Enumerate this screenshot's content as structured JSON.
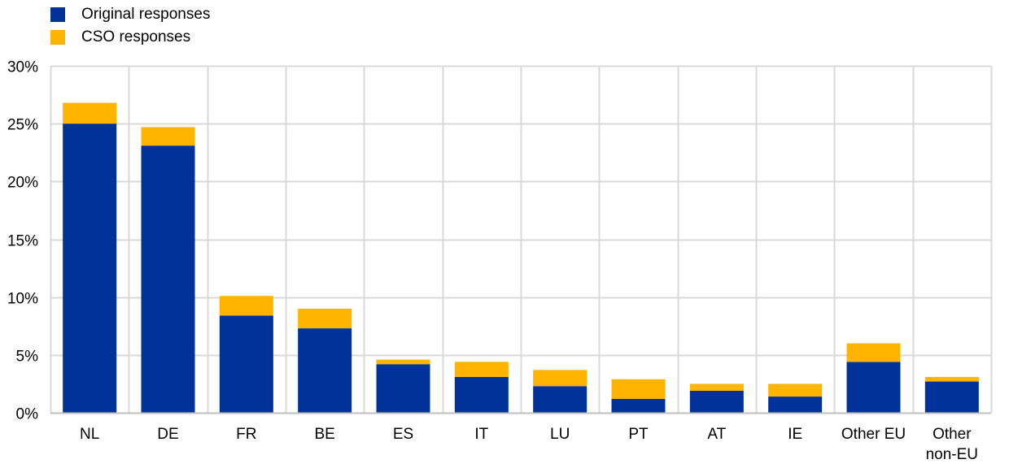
{
  "legend": {
    "items": [
      {
        "label": "Original responses",
        "color": "#003299"
      },
      {
        "label": "CSO responses",
        "color": "#FFB400"
      }
    ]
  },
  "chart_data": {
    "type": "bar",
    "stacked": true,
    "categories": [
      "NL",
      "DE",
      "FR",
      "BE",
      "ES",
      "IT",
      "LU",
      "PT",
      "AT",
      "IE",
      "Other EU",
      "Other non-EU"
    ],
    "category_lines": [
      [
        "NL"
      ],
      [
        "DE"
      ],
      [
        "FR"
      ],
      [
        "BE"
      ],
      [
        "ES"
      ],
      [
        "IT"
      ],
      [
        "LU"
      ],
      [
        "PT"
      ],
      [
        "AT"
      ],
      [
        "IE"
      ],
      [
        "Other EU"
      ],
      [
        "Other",
        "non-EU"
      ]
    ],
    "series": [
      {
        "name": "Original responses",
        "color": "#003299",
        "values": [
          25.0,
          23.1,
          8.4,
          7.3,
          4.2,
          3.1,
          2.3,
          1.2,
          1.9,
          1.4,
          4.4,
          2.7
        ]
      },
      {
        "name": "CSO responses",
        "color": "#FFB400",
        "values": [
          1.8,
          1.6,
          1.7,
          1.7,
          0.4,
          1.3,
          1.4,
          1.7,
          0.6,
          1.1,
          1.6,
          0.4
        ]
      }
    ],
    "ylim": [
      0,
      30
    ],
    "yticks": [
      0,
      5,
      10,
      15,
      20,
      25,
      30
    ],
    "ytick_labels": [
      "0%",
      "5%",
      "10%",
      "15%",
      "20%",
      "25%",
      "30%"
    ],
    "grid": true,
    "legend_position": "top-left"
  }
}
